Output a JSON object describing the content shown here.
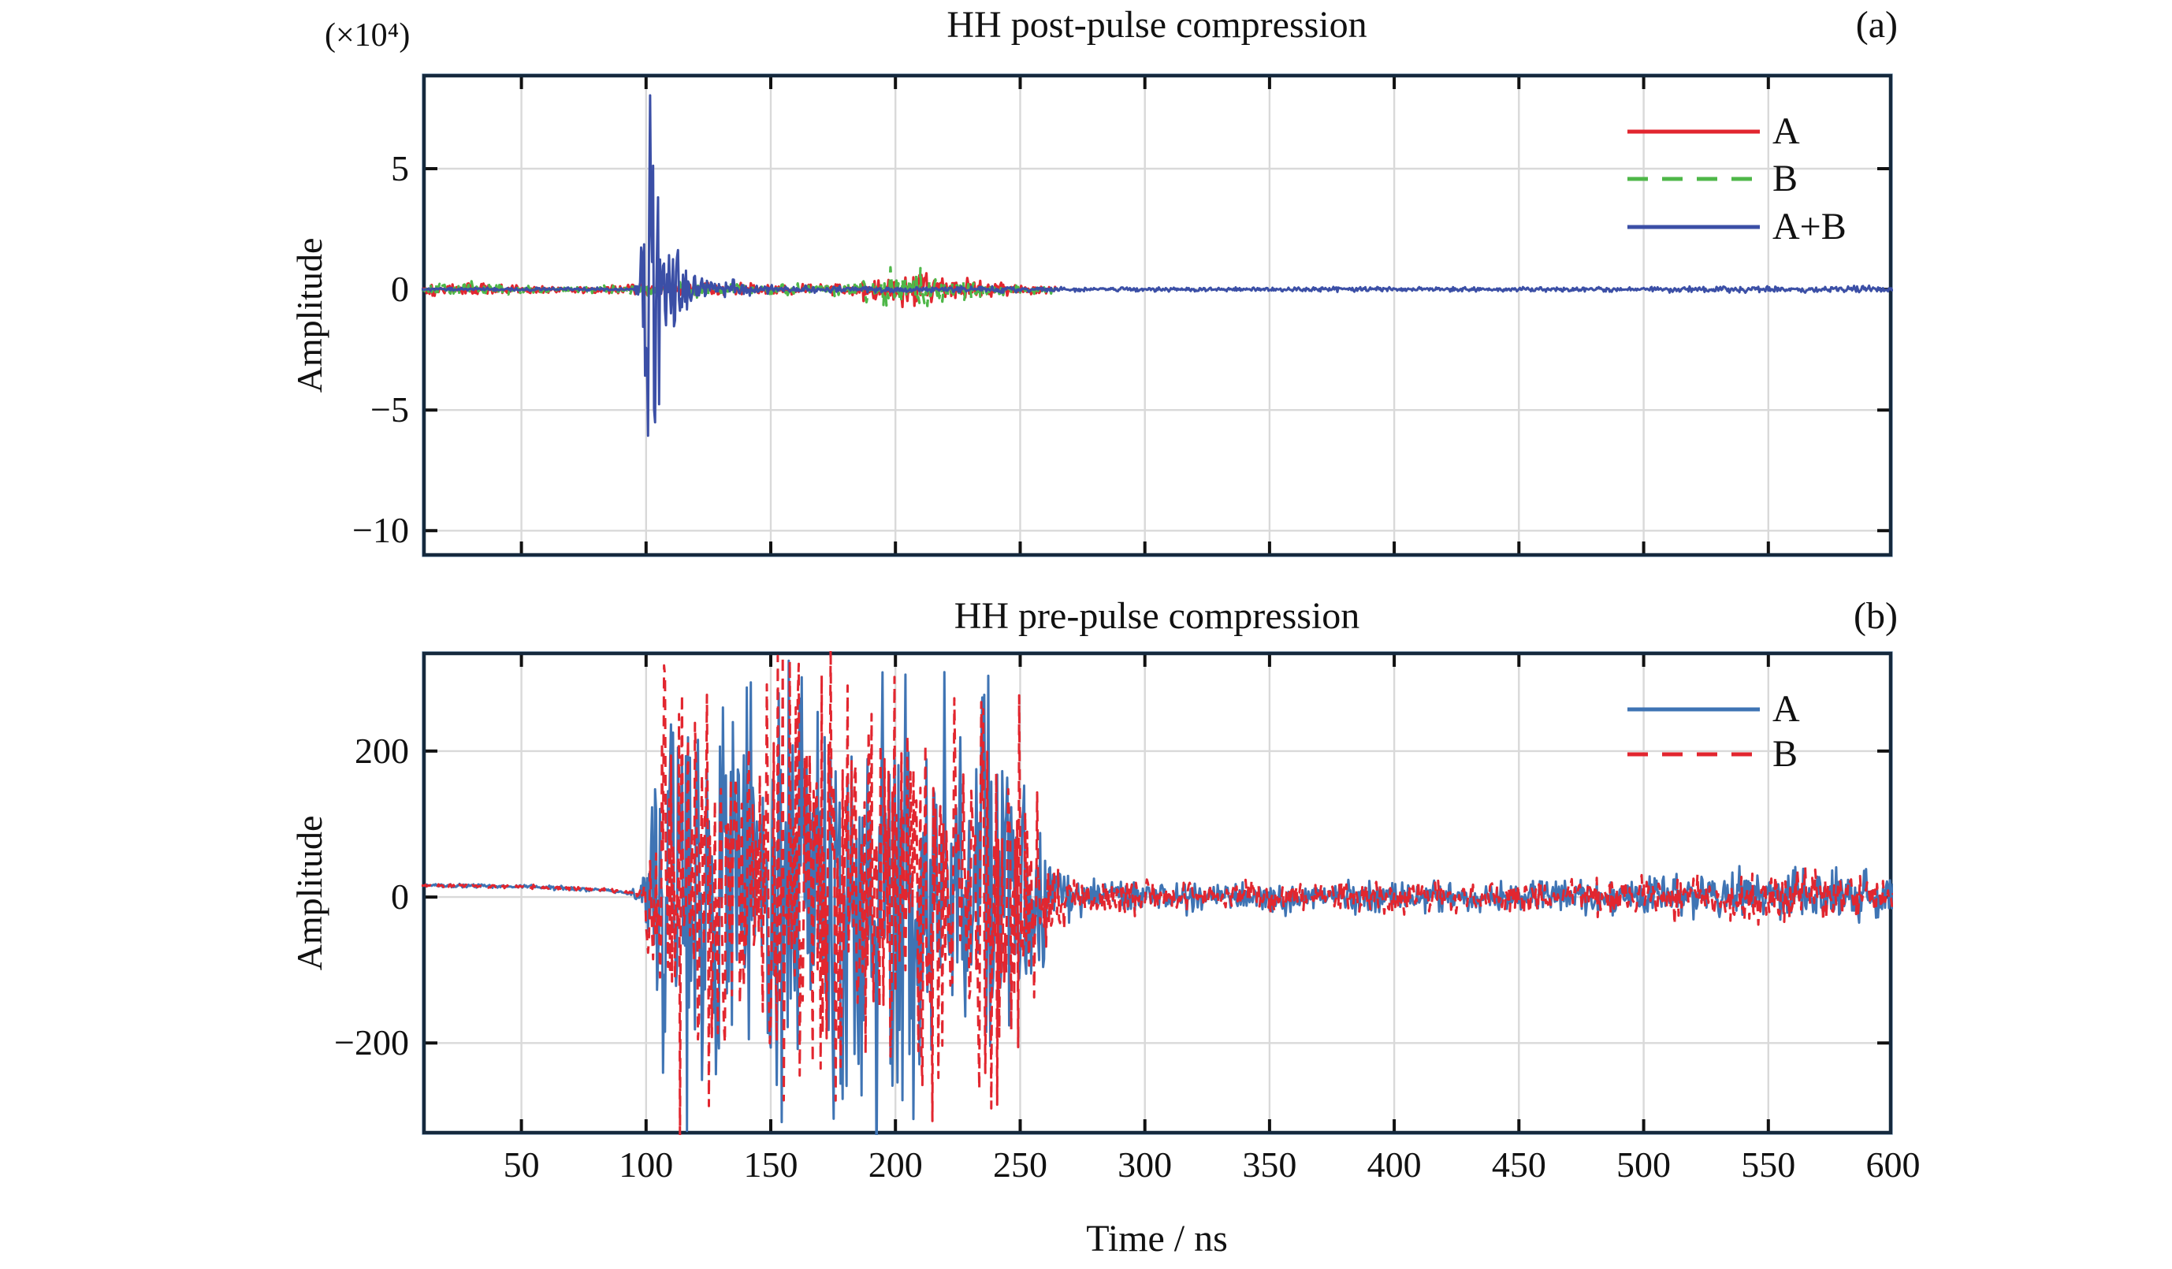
{
  "style": {
    "background": "#ffffff",
    "grid_color": "#d9d9d9",
    "axis_color": "#15293d",
    "axis_halo_color": "#c2d5e8",
    "tick_color": "#111111",
    "text_color": "#111111",
    "red": "#e2262f",
    "green": "#4eb748",
    "dark_blue": "#3b4fa6",
    "steel_blue": "#3f74b4"
  },
  "chart_data": [
    {
      "id": "a",
      "type": "line",
      "title": "HH post-pulse compression",
      "panel_label": "(a)",
      "ylabel": "Amplitude",
      "y_multiplier_label": "(×10⁴)",
      "xlim": [
        10,
        600
      ],
      "ylim": [
        -11.1,
        8.95
      ],
      "xticks": [
        50,
        100,
        150,
        200,
        250,
        300,
        350,
        400,
        450,
        500,
        550,
        600
      ],
      "show_xtick_labels": false,
      "yticks": [
        5,
        0,
        -5,
        -10
      ],
      "grid": true,
      "legend_position": "top-right",
      "legend": [
        {
          "label": "A",
          "color": "#e2262f",
          "dash": "none"
        },
        {
          "label": "B",
          "color": "#4eb748",
          "dash": "13 9"
        },
        {
          "label": "A+B",
          "color": "#3b4fa6",
          "dash": "none"
        }
      ],
      "series": [
        {
          "name": "A",
          "color": "#e2262f",
          "dash": "none",
          "width": 3.2,
          "seed": 101,
          "gain": 1.3,
          "trange": [
            10,
            264.5
          ],
          "envelope": [
            [
              10,
              0.08
            ],
            [
              13,
              0.26
            ],
            [
              28,
              0.3
            ],
            [
              42,
              0.26
            ],
            [
              50,
              0.17
            ],
            [
              70,
              0.15
            ],
            [
              88,
              0.2
            ],
            [
              95,
              0.28
            ],
            [
              110,
              0.32
            ],
            [
              130,
              0.28
            ],
            [
              148,
              0.22
            ],
            [
              165,
              0.24
            ],
            [
              180,
              0.3
            ],
            [
              190,
              0.55
            ],
            [
              198,
              0.8
            ],
            [
              212,
              0.82
            ],
            [
              222,
              0.55
            ],
            [
              235,
              0.38
            ],
            [
              248,
              0.28
            ],
            [
              258,
              0.22
            ],
            [
              264,
              0.12
            ]
          ]
        },
        {
          "name": "B",
          "color": "#4eb748",
          "dash": "13 9",
          "width": 3.2,
          "seed": 202,
          "gain": 1.3,
          "trange": [
            10,
            264.5
          ],
          "envelope": [
            [
              10,
              0.08
            ],
            [
              13,
              0.26
            ],
            [
              28,
              0.3
            ],
            [
              42,
              0.26
            ],
            [
              50,
              0.17
            ],
            [
              70,
              0.15
            ],
            [
              88,
              0.2
            ],
            [
              95,
              0.28
            ],
            [
              110,
              0.32
            ],
            [
              130,
              0.28
            ],
            [
              148,
              0.22
            ],
            [
              165,
              0.24
            ],
            [
              180,
              0.3
            ],
            [
              190,
              0.55
            ],
            [
              198,
              0.8
            ],
            [
              212,
              0.82
            ],
            [
              222,
              0.55
            ],
            [
              235,
              0.38
            ],
            [
              248,
              0.28
            ],
            [
              258,
              0.22
            ],
            [
              264,
              0.12
            ]
          ]
        },
        {
          "name": "A+B",
          "color": "#3b4fa6",
          "dash": "none",
          "width": 3,
          "seed": 303,
          "gain": 1.35,
          "trange": [
            10,
            600
          ],
          "envelope": [
            [
              10,
              0.06
            ],
            [
              95,
              0.07
            ],
            [
              97.5,
              0.4
            ],
            [
              98.3,
              5
            ],
            [
              99,
              13
            ],
            [
              102.5,
              13
            ],
            [
              104,
              7
            ],
            [
              106.5,
              3.6
            ],
            [
              110,
              2.2
            ],
            [
              116,
              1.3
            ],
            [
              124,
              0.7
            ],
            [
              134,
              0.4
            ],
            [
              146,
              0.2
            ],
            [
              158,
              0.13
            ],
            [
              250,
              0.12
            ],
            [
              320,
              0.09
            ],
            [
              500,
              0.1
            ],
            [
              545,
              0.15
            ],
            [
              575,
              0.13
            ],
            [
              600,
              0.14
            ]
          ]
        }
      ]
    },
    {
      "id": "b",
      "type": "line",
      "title": "HH pre-pulse compression",
      "panel_label": "(b)",
      "ylabel": "Amplitude",
      "xlabel": "Time / ns",
      "xlim": [
        10,
        600
      ],
      "ylim": [
        -326,
        337
      ],
      "xticks": [
        50,
        100,
        150,
        200,
        250,
        300,
        350,
        400,
        450,
        500,
        550,
        600
      ],
      "show_xtick_labels": true,
      "yticks": [
        200,
        0,
        -200
      ],
      "grid": true,
      "legend_position": "top-right",
      "legend": [
        {
          "label": "A",
          "color": "#3f74b4",
          "dash": "none"
        },
        {
          "label": "B",
          "color": "#e2262f",
          "dash": "14 10"
        }
      ],
      "series": [
        {
          "name": "A",
          "color": "#3f74b4",
          "dash": "none",
          "width": 3,
          "seed": 404,
          "gain": 1.3,
          "trange": [
            10,
            600
          ],
          "offset": [
            [
              10,
              16
            ],
            [
              55,
              14
            ],
            [
              85,
              9
            ],
            [
              97,
              4
            ],
            [
              102,
              0
            ]
          ],
          "envelope": [
            [
              10,
              2.5
            ],
            [
              94,
              3
            ],
            [
              98,
              14
            ],
            [
              100,
              60
            ],
            [
              102,
              150
            ],
            [
              105,
              260
            ],
            [
              112,
              320
            ],
            [
              126,
              330
            ],
            [
              140,
              300
            ],
            [
              148,
              255
            ],
            [
              155,
              330
            ],
            [
              170,
              335
            ],
            [
              182,
              280
            ],
            [
              192,
              325
            ],
            [
              205,
              330
            ],
            [
              215,
              300
            ],
            [
              222,
              260
            ],
            [
              230,
              315
            ],
            [
              243,
              310
            ],
            [
              251,
              230
            ],
            [
              257,
              130
            ],
            [
              263,
              70
            ],
            [
              268,
              40
            ],
            [
              274,
              26
            ],
            [
              330,
              23
            ],
            [
              430,
              22
            ],
            [
              470,
              26
            ],
            [
              520,
              32
            ],
            [
              555,
              36
            ],
            [
              585,
              38
            ],
            [
              600,
              34
            ]
          ]
        },
        {
          "name": "B",
          "color": "#e2262f",
          "dash": "14 10",
          "width": 3,
          "seed": 505,
          "gain": 1.3,
          "trange": [
            10,
            600
          ],
          "offset": [
            [
              10,
              16
            ],
            [
              55,
              14
            ],
            [
              85,
              9
            ],
            [
              97,
              4
            ],
            [
              102,
              0
            ]
          ],
          "envelope": [
            [
              10,
              2.5
            ],
            [
              94,
              3
            ],
            [
              98,
              14
            ],
            [
              100,
              60
            ],
            [
              102,
              150
            ],
            [
              105,
              260
            ],
            [
              112,
              320
            ],
            [
              126,
              330
            ],
            [
              140,
              300
            ],
            [
              148,
              255
            ],
            [
              155,
              330
            ],
            [
              170,
              335
            ],
            [
              182,
              280
            ],
            [
              192,
              325
            ],
            [
              205,
              330
            ],
            [
              215,
              300
            ],
            [
              222,
              260
            ],
            [
              230,
              315
            ],
            [
              243,
              310
            ],
            [
              251,
              230
            ],
            [
              257,
              130
            ],
            [
              263,
              70
            ],
            [
              268,
              40
            ],
            [
              274,
              26
            ],
            [
              330,
              23
            ],
            [
              430,
              22
            ],
            [
              470,
              26
            ],
            [
              520,
              32
            ],
            [
              555,
              36
            ],
            [
              585,
              38
            ],
            [
              600,
              34
            ]
          ]
        }
      ]
    }
  ]
}
